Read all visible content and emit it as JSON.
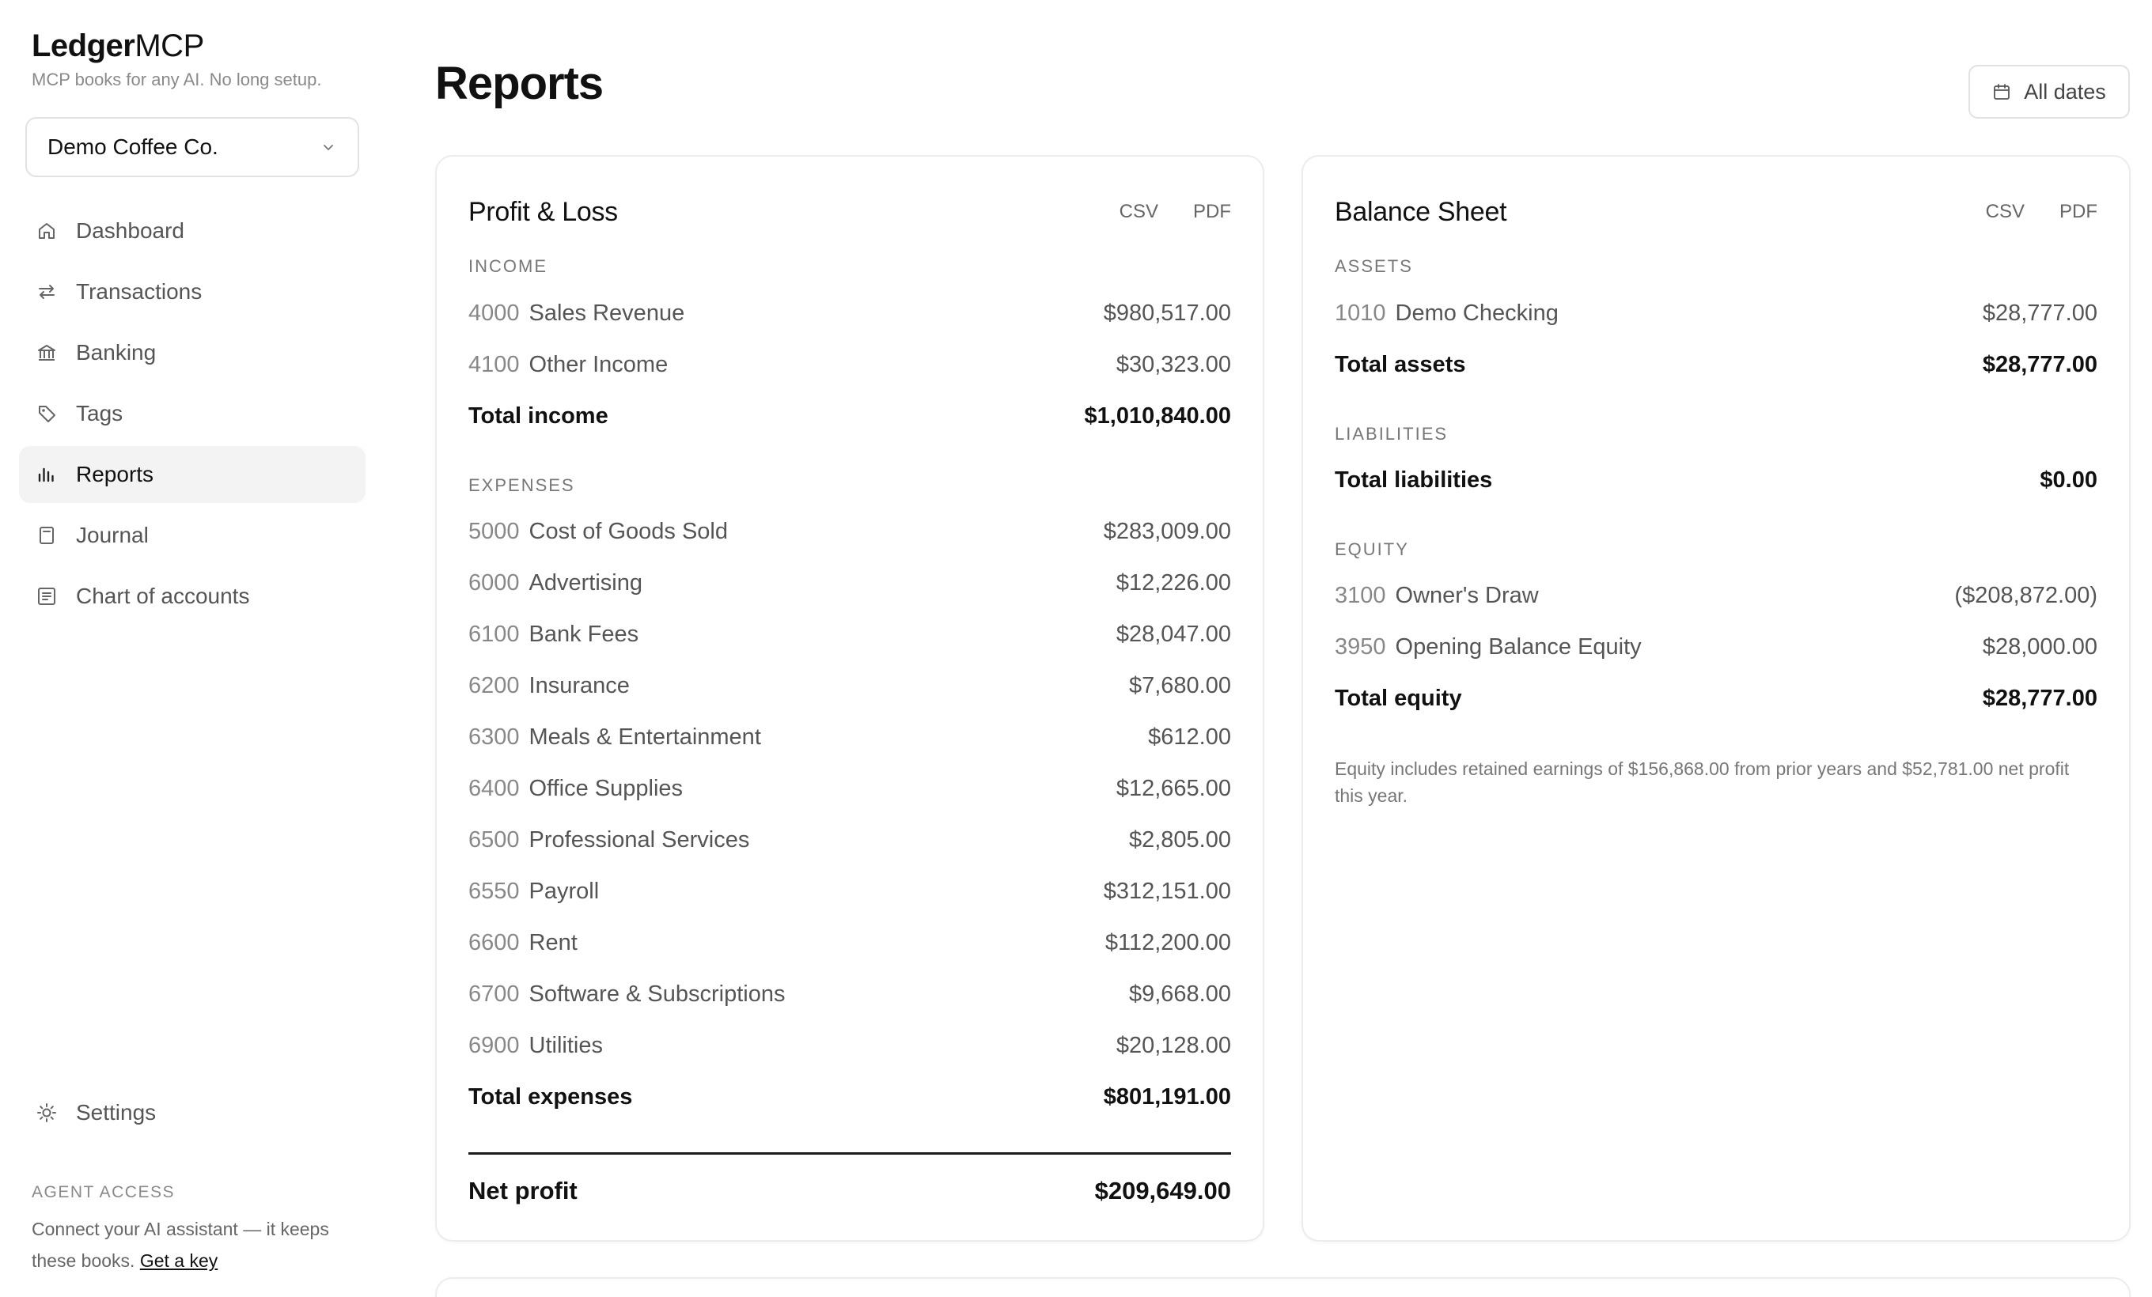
{
  "brand": {
    "bold": "Ledger",
    "light": "MCP",
    "tagline": "MCP books for any AI. No long setup."
  },
  "company": {
    "selected": "Demo Coffee Co."
  },
  "nav": {
    "items": [
      {
        "label": "Dashboard",
        "icon": "home-icon"
      },
      {
        "label": "Transactions",
        "icon": "transfer-arrows-icon"
      },
      {
        "label": "Banking",
        "icon": "bank-icon"
      },
      {
        "label": "Tags",
        "icon": "tag-icon"
      },
      {
        "label": "Reports",
        "icon": "bar-chart-icon",
        "active": true
      },
      {
        "label": "Journal",
        "icon": "notebook-icon"
      },
      {
        "label": "Chart of accounts",
        "icon": "list-icon"
      }
    ],
    "settings": {
      "label": "Settings",
      "icon": "sun-gear-icon"
    }
  },
  "agent": {
    "heading": "AGENT ACCESS",
    "text": "Connect your AI assistant — it keeps these books.",
    "link": "Get a key"
  },
  "page": {
    "title": "Reports",
    "date_filter": "All dates"
  },
  "profit_loss": {
    "title": "Profit & Loss",
    "csv": "CSV",
    "pdf": "PDF",
    "income_heading": "INCOME",
    "income": [
      {
        "code": "4000",
        "name": "Sales Revenue",
        "amount": "$980,517.00"
      },
      {
        "code": "4100",
        "name": "Other Income",
        "amount": "$30,323.00"
      }
    ],
    "total_income": {
      "label": "Total income",
      "amount": "$1,010,840.00"
    },
    "expenses_heading": "EXPENSES",
    "expenses": [
      {
        "code": "5000",
        "name": "Cost of Goods Sold",
        "amount": "$283,009.00"
      },
      {
        "code": "6000",
        "name": "Advertising",
        "amount": "$12,226.00"
      },
      {
        "code": "6100",
        "name": "Bank Fees",
        "amount": "$28,047.00"
      },
      {
        "code": "6200",
        "name": "Insurance",
        "amount": "$7,680.00"
      },
      {
        "code": "6300",
        "name": "Meals & Entertainment",
        "amount": "$612.00"
      },
      {
        "code": "6400",
        "name": "Office Supplies",
        "amount": "$12,665.00"
      },
      {
        "code": "6500",
        "name": "Professional Services",
        "amount": "$2,805.00"
      },
      {
        "code": "6550",
        "name": "Payroll",
        "amount": "$312,151.00"
      },
      {
        "code": "6600",
        "name": "Rent",
        "amount": "$112,200.00"
      },
      {
        "code": "6700",
        "name": "Software & Subscriptions",
        "amount": "$9,668.00"
      },
      {
        "code": "6900",
        "name": "Utilities",
        "amount": "$20,128.00"
      }
    ],
    "total_expenses": {
      "label": "Total expenses",
      "amount": "$801,191.00"
    },
    "net_profit": {
      "label": "Net profit",
      "amount": "$209,649.00"
    }
  },
  "balance_sheet": {
    "title": "Balance Sheet",
    "csv": "CSV",
    "pdf": "PDF",
    "assets_heading": "ASSETS",
    "assets": [
      {
        "code": "1010",
        "name": "Demo Checking",
        "amount": "$28,777.00"
      }
    ],
    "total_assets": {
      "label": "Total assets",
      "amount": "$28,777.00"
    },
    "liabilities_heading": "LIABILITIES",
    "total_liabilities": {
      "label": "Total liabilities",
      "amount": "$0.00"
    },
    "equity_heading": "EQUITY",
    "equity": [
      {
        "code": "3100",
        "name": "Owner's Draw",
        "amount": "($208,872.00)"
      },
      {
        "code": "3950",
        "name": "Opening Balance Equity",
        "amount": "$28,000.00"
      }
    ],
    "total_equity": {
      "label": "Total equity",
      "amount": "$28,777.00"
    },
    "note": "Equity includes retained earnings of $156,868.00 from prior years and $52,781.00 net profit this year."
  }
}
